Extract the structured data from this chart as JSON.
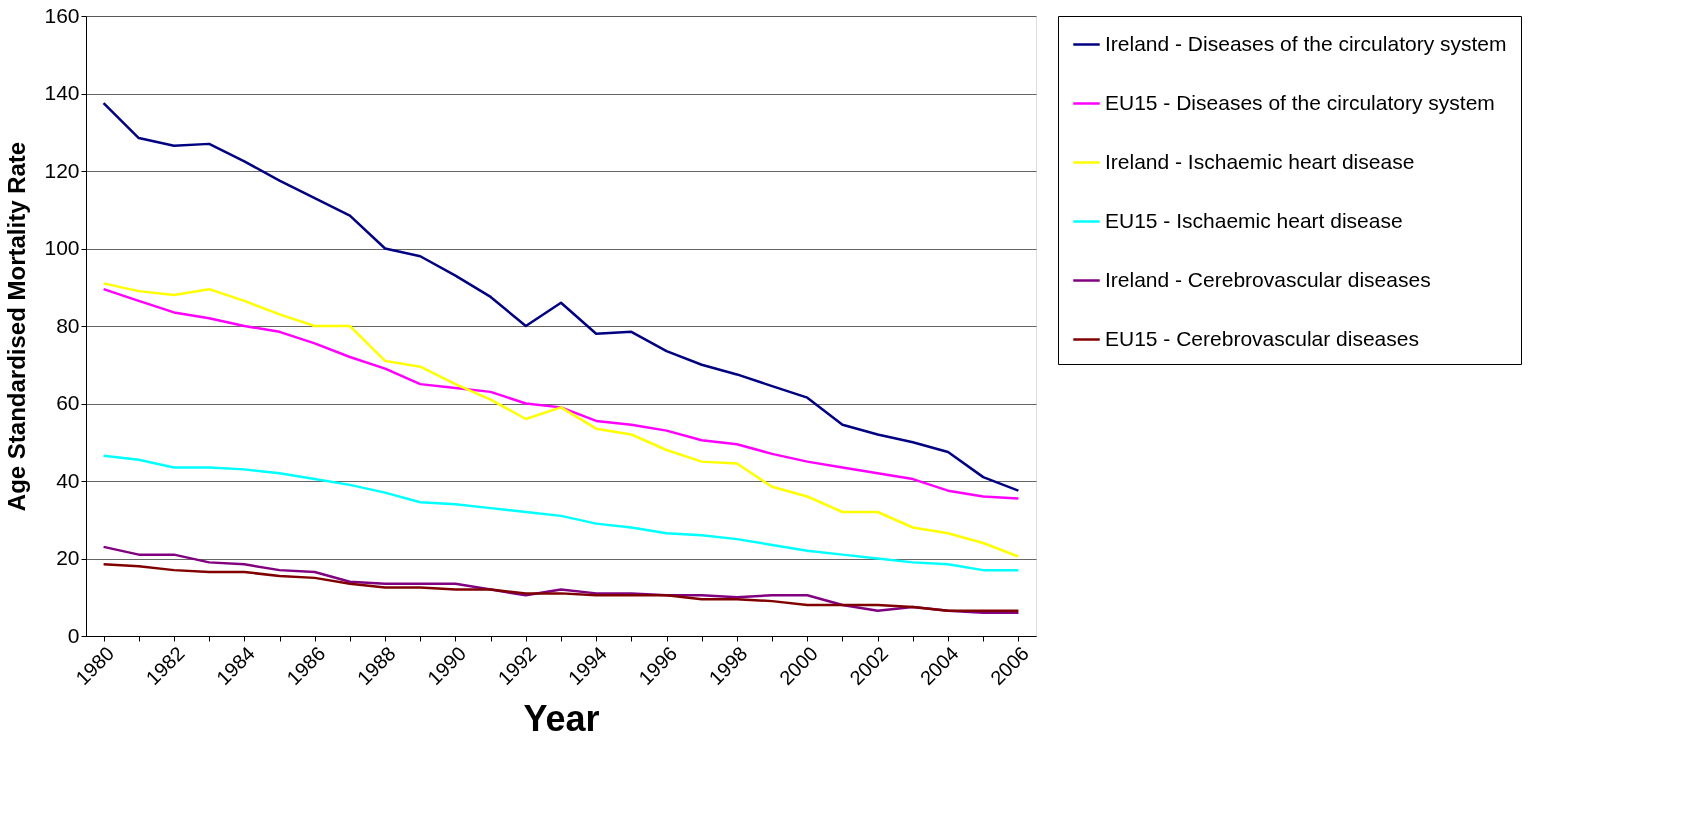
{
  "chart_data": {
    "type": "line",
    "xlabel": "Year",
    "ylabel": "Age Standardised Mortality Rate",
    "categories": [
      "1980",
      null,
      "1982",
      null,
      "1984",
      null,
      "1986",
      null,
      "1988",
      null,
      "1990",
      null,
      "1992",
      null,
      "1994",
      null,
      "1996",
      null,
      "1998",
      null,
      "2000",
      null,
      "2002",
      null,
      "2004",
      null,
      "2006"
    ],
    "ylim": [
      0,
      160
    ],
    "yticks": [
      0,
      20,
      40,
      60,
      80,
      100,
      120,
      140,
      160
    ],
    "grid": "y",
    "legend": "right",
    "marker": "none",
    "line_style": "solid",
    "series": [
      {
        "name": "Ireland - Diseases of the circulatory system",
        "color": "#000080",
        "values": [
          137.5,
          128.5,
          126.5,
          127,
          122.5,
          117.5,
          113,
          108.5,
          100,
          98,
          93,
          87.5,
          80,
          86,
          78,
          78.5,
          73.5,
          70,
          67.5,
          64.5,
          61.5,
          54.5,
          52,
          50,
          47.5,
          41,
          37.5
        ]
      },
      {
        "name": "EU15 - Diseases of the circulatory system",
        "color": "#ff00ff",
        "values": [
          89.5,
          86.5,
          83.5,
          82,
          80,
          78.5,
          75.5,
          72,
          69,
          65,
          64,
          63,
          60,
          59,
          55.5,
          54.5,
          53,
          50.5,
          49.5,
          47,
          45,
          43.5,
          42,
          40.5,
          37.5,
          36,
          35.5
        ]
      },
      {
        "name": "Ireland - Ischaemic heart disease",
        "color": "#ffff00",
        "values": [
          91,
          89,
          88,
          89.5,
          86.5,
          83,
          80,
          80,
          71,
          69.5,
          65,
          61,
          56,
          59,
          53.5,
          52,
          48,
          45,
          44.5,
          38.5,
          36,
          32,
          32,
          28,
          26.5,
          24,
          20.5
        ]
      },
      {
        "name": "EU15 - Ischaemic heart disease",
        "color": "#00ffff",
        "values": [
          46.5,
          45.5,
          43.5,
          43.5,
          43,
          42,
          40.5,
          39,
          37,
          34.5,
          34,
          33,
          32,
          31,
          29,
          28,
          26.5,
          26,
          25,
          23.5,
          22,
          21,
          20,
          19,
          18.5,
          17,
          17
        ]
      },
      {
        "name": "Ireland -  Cerebrovascular diseases",
        "color": "#800080",
        "values": [
          23,
          21,
          21,
          19,
          18.5,
          17,
          16.5,
          14,
          13.5,
          13.5,
          13.5,
          12,
          10.5,
          12,
          11,
          11,
          10.5,
          10.5,
          10,
          10.5,
          10.5,
          8,
          6.5,
          7.5,
          6.5,
          6,
          6
        ]
      },
      {
        "name": "EU15 -  Cerebrovascular diseases",
        "color": "#800000",
        "values": [
          18.5,
          18,
          17,
          16.5,
          16.5,
          15.5,
          15,
          13.5,
          12.5,
          12.5,
          12,
          12,
          11,
          11,
          10.5,
          10.5,
          10.5,
          9.5,
          9.5,
          9,
          8,
          8,
          8,
          7.5,
          6.5,
          6.5,
          6.5
        ]
      }
    ]
  }
}
